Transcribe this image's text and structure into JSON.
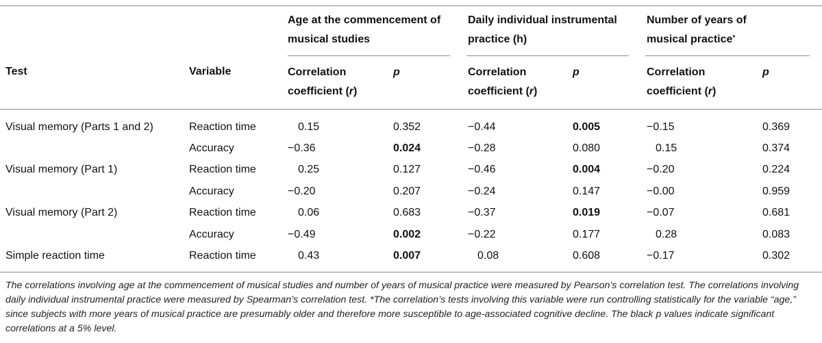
{
  "header": {
    "test": "Test",
    "variable": "Variable",
    "group1": "Age at the commencement of musical studies",
    "group2": "Daily individual instrumental practice (h)",
    "group3": "Number of years of musical practice",
    "group3_mark": "*",
    "corr_label": "Correlation coefficient (",
    "corr_r": "r",
    "corr_close": ")",
    "p_label": "p"
  },
  "rows": [
    {
      "test": "Visual memory (Parts 1 and 2)",
      "variable": "Reaction time",
      "r1": "0.15",
      "p1": "0.352",
      "r2": "−0.44",
      "p2": "0.005",
      "r3": "−0.15",
      "p3": "0.369"
    },
    {
      "test": "",
      "variable": "Accuracy",
      "r1": "−0.36",
      "p1": "0.024",
      "r2": "−0.28",
      "p2": "0.080",
      "r3": "0.15",
      "p3": "0.374"
    },
    {
      "test": "Visual memory (Part 1)",
      "variable": "Reaction time",
      "r1": "0.25",
      "p1": "0.127",
      "r2": "−0.46",
      "p2": "0.004",
      "r3": "−0.20",
      "p3": "0.224"
    },
    {
      "test": "",
      "variable": "Accuracy",
      "r1": "−0.20",
      "p1": "0.207",
      "r2": "−0.24",
      "p2": "0.147",
      "r3": "−0.00",
      "p3": "0.959"
    },
    {
      "test": "Visual memory (Part 2)",
      "variable": "Reaction time",
      "r1": "0.06",
      "p1": "0.683",
      "r2": "−0.37",
      "p2": "0.019",
      "r3": "−0.07",
      "p3": "0.681"
    },
    {
      "test": "",
      "variable": "Accuracy",
      "r1": "−0.49",
      "p1": "0.002",
      "r2": "−0.22",
      "p2": "0.177",
      "r3": "0.28",
      "p3": "0.083"
    },
    {
      "test": "Simple reaction time",
      "variable": "Reaction time",
      "r1": "0.43",
      "p1": "0.007",
      "r2": "0.08",
      "p2": "0.608",
      "r3": "−0.17",
      "p3": "0.302"
    }
  ],
  "footnote": "The correlations involving age at the commencement of musical studies and number of years of musical practice were measured by Pearson’s correlation test. The correlations involving daily individual instrumental practice were measured by Spearman’s correlation test. *The correlation’s tests involving this variable were run controlling statistically for the variable “age,” since subjects with more years of musical practice are presumably older and therefore more susceptible to age-associated cognitive decline. The black p values indicate significant correlations at a 5% level."
}
